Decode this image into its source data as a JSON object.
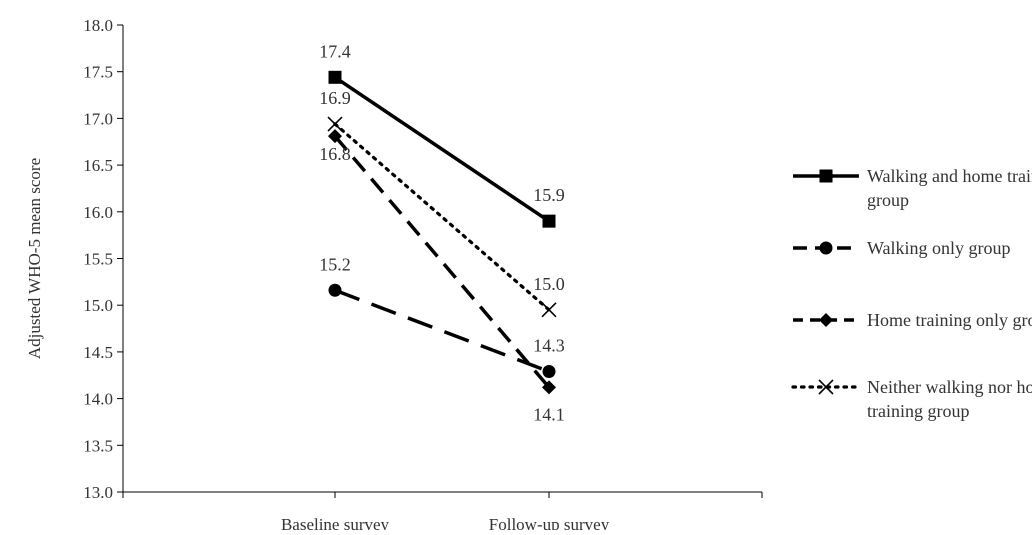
{
  "chart_data": {
    "type": "line",
    "ylabel": "Adjusted WHO-5 mean score",
    "xlabel": "",
    "categories": [
      "Baseline survey",
      "Follow-up survey"
    ],
    "ylim": [
      13.0,
      18.0
    ],
    "yticks": [
      "13.0",
      "13.5",
      "14.0",
      "14.5",
      "15.0",
      "15.5",
      "16.0",
      "16.5",
      "17.0",
      "17.5",
      "18.0"
    ],
    "grid": false,
    "legend_position": "right",
    "series": [
      {
        "name": "Walking and home training group",
        "legend_lines": [
          "Walking and home training",
          "group"
        ],
        "values": [
          17.44,
          15.9
        ],
        "labels": [
          "17.4",
          "15.9"
        ],
        "marker": "square",
        "dash": "solid"
      },
      {
        "name": "Walking only group",
        "legend_lines": [
          "Walking only group"
        ],
        "values": [
          15.16,
          14.29
        ],
        "labels": [
          "15.2",
          "14.3"
        ],
        "marker": "circle",
        "dash": "longdash"
      },
      {
        "name": "Home training only group",
        "legend_lines": [
          "Home training only group"
        ],
        "values": [
          16.81,
          14.12
        ],
        "labels": [
          "16.8",
          "14.1"
        ],
        "marker": "diamond",
        "dash": "dash"
      },
      {
        "name": "Neither walking nor home training group",
        "legend_lines": [
          "Neither walking nor home",
          "training group"
        ],
        "values": [
          16.94,
          14.95
        ],
        "labels": [
          "16.9",
          "15.0"
        ],
        "marker": "x",
        "dash": "dot"
      }
    ],
    "colors": {
      "line": "#000000",
      "axis": "#000000",
      "text": "#333333"
    }
  }
}
